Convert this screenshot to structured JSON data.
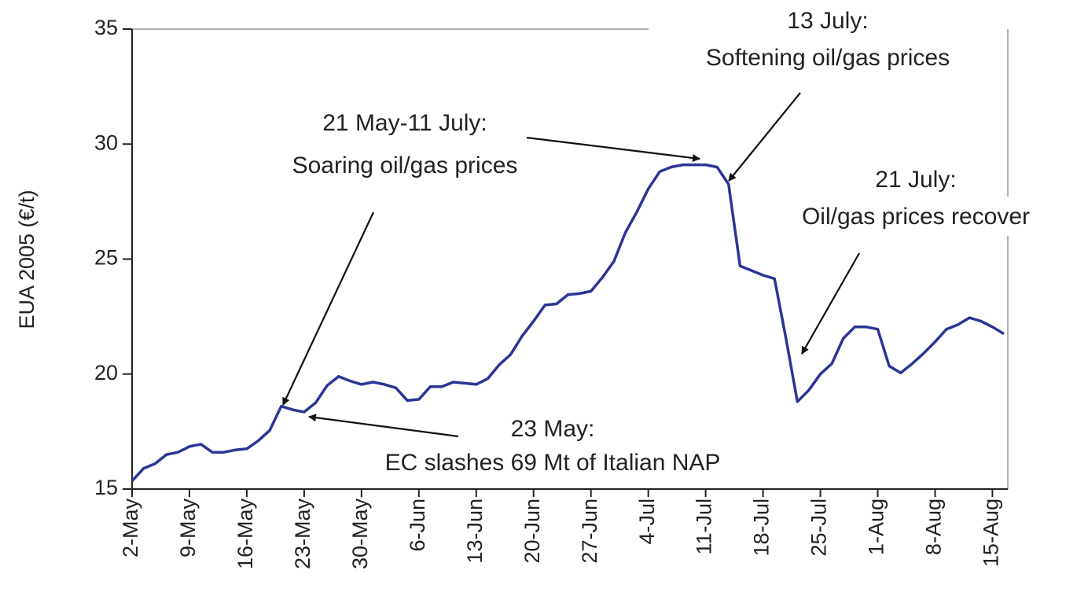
{
  "chart_data": {
    "type": "line",
    "y_label": "EUA 2005 (€/t)",
    "categories": [
      "2-May",
      null,
      null,
      null,
      null,
      "9-May",
      null,
      null,
      null,
      null,
      "16-May",
      null,
      null,
      null,
      null,
      "23-May",
      null,
      null,
      null,
      null,
      "30-May",
      null,
      null,
      null,
      null,
      "6-Jun",
      null,
      null,
      null,
      null,
      "13-Jun",
      null,
      null,
      null,
      null,
      "20-Jun",
      null,
      null,
      null,
      null,
      "27-Jun",
      null,
      null,
      null,
      null,
      "4-Jul",
      null,
      null,
      null,
      null,
      "11-Jul",
      null,
      null,
      null,
      null,
      "18-Jul",
      null,
      null,
      null,
      null,
      "25-Jul",
      null,
      null,
      null,
      null,
      "1-Aug",
      null,
      null,
      null,
      null,
      "8-Aug",
      null,
      null,
      null,
      null,
      "15-Aug",
      null
    ],
    "series": [
      {
        "name": "EUA 2005",
        "color": "#2b3595",
        "values": [
          15.35,
          15.9,
          16.1,
          16.5,
          16.6,
          16.85,
          16.95,
          16.6,
          16.6,
          16.7,
          16.75,
          17.1,
          17.55,
          18.6,
          18.45,
          18.35,
          18.75,
          19.5,
          19.9,
          19.7,
          19.55,
          19.65,
          19.55,
          19.4,
          18.85,
          18.9,
          19.45,
          19.45,
          19.65,
          19.6,
          19.55,
          19.8,
          20.4,
          20.85,
          21.65,
          22.3,
          23.0,
          23.05,
          23.45,
          23.5,
          23.6,
          24.2,
          24.9,
          26.15,
          27.05,
          28.05,
          28.8,
          29.0,
          29.1,
          29.1,
          29.1,
          29.0,
          28.25,
          24.7,
          24.5,
          24.3,
          24.15,
          21.55,
          18.8,
          19.3,
          20.0,
          20.45,
          21.55,
          22.05,
          22.05,
          21.95,
          20.35,
          20.05,
          20.45,
          20.9,
          21.4,
          21.95,
          22.15,
          22.45,
          22.3,
          22.05,
          21.75
        ]
      }
    ],
    "ylim": [
      15,
      35
    ],
    "yticks": [
      15,
      20,
      25,
      30,
      35
    ],
    "grid": false,
    "annotations": [
      {
        "lines": [
          "13 July:",
          "Softening oil/gas prices"
        ]
      },
      {
        "lines": [
          "21 May-11 July:",
          "Soaring oil/gas prices"
        ]
      },
      {
        "lines": [
          "21 July:",
          "Oil/gas prices recover"
        ]
      },
      {
        "lines": [
          "23 May:",
          "EC slashes 69 Mt of Italian NAP"
        ]
      }
    ]
  }
}
